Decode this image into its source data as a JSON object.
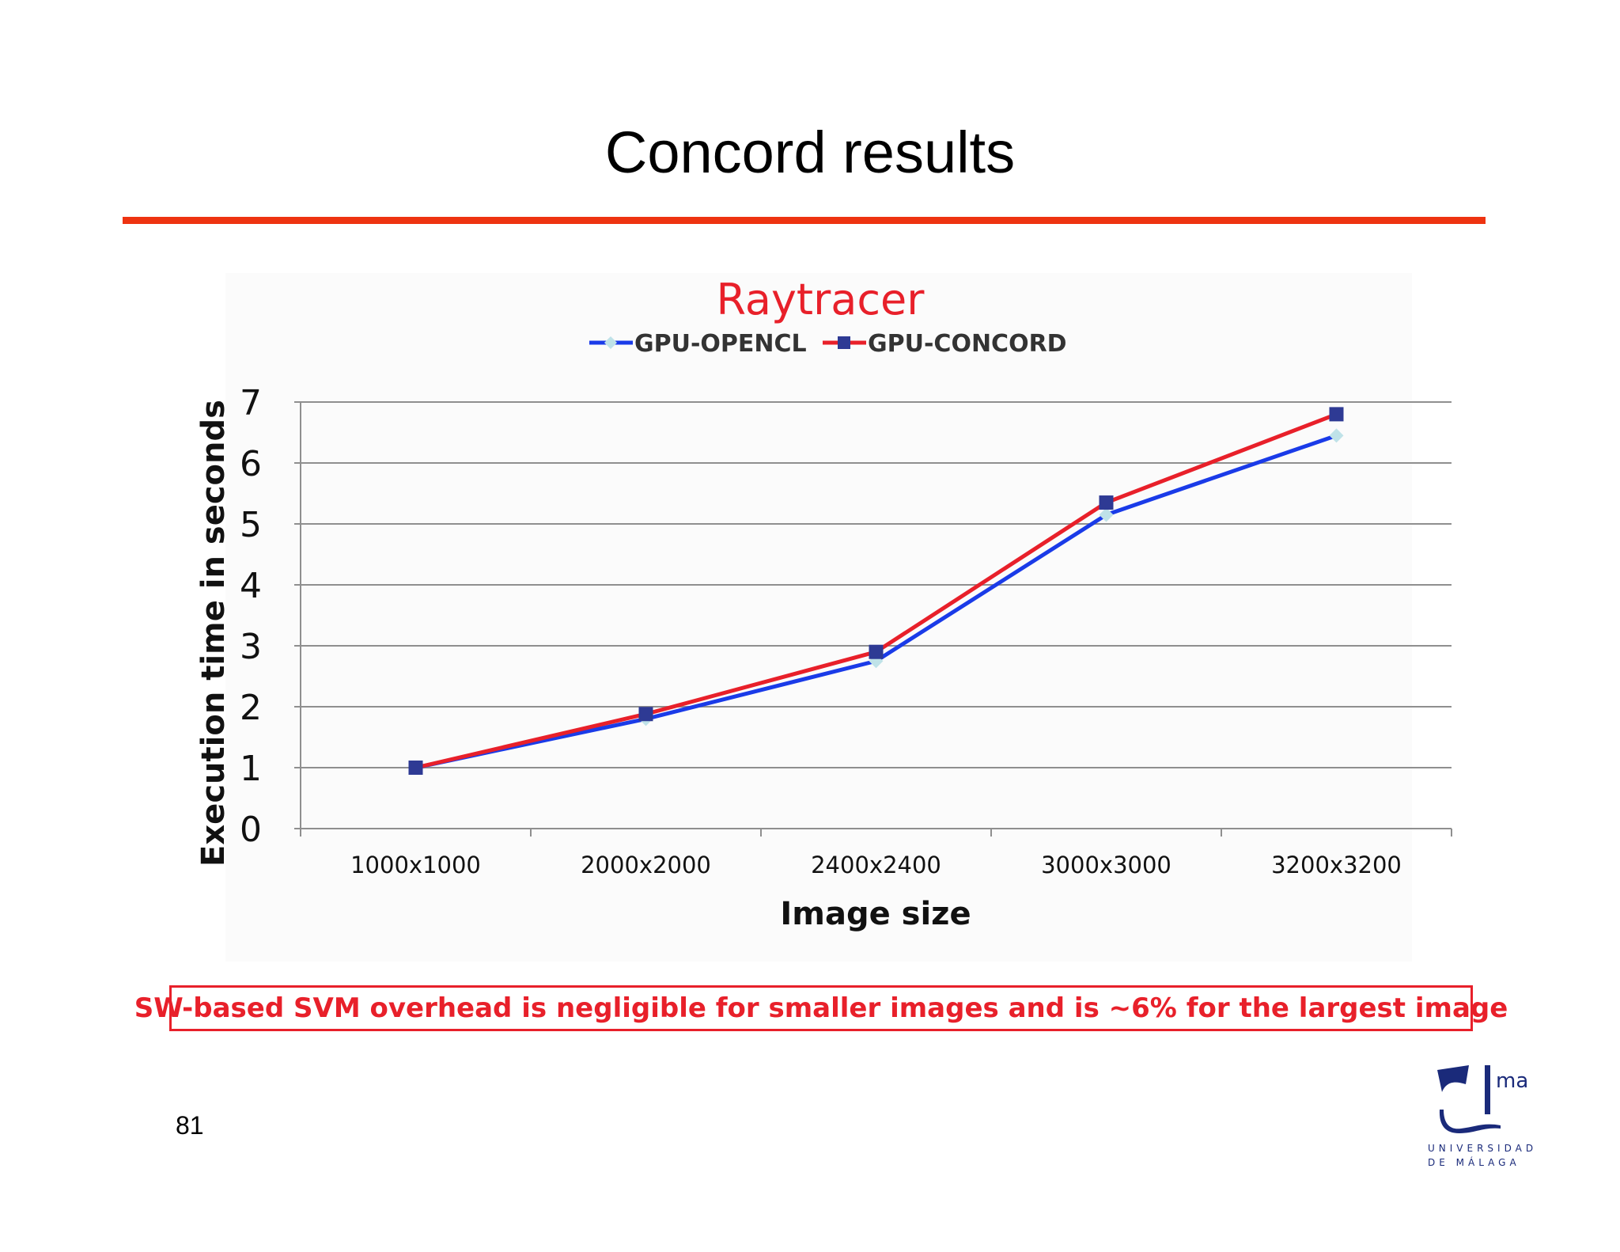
{
  "slide": {
    "title": "Concord results",
    "page_number": "81",
    "accent_color": "#ee3311",
    "note": "SW-based SVM overhead is negligible for smaller images and is ~6% for the largest image",
    "note_color": "#e8202a"
  },
  "logo": {
    "mark_text": "ma",
    "line1": "UNIVERSIDAD",
    "line2": "DE MÁLAGA",
    "color": "#1a2a7a"
  },
  "chart_data": {
    "type": "line",
    "title": "Raytracer",
    "title_color": "#e8202a",
    "xlabel": "Image size",
    "ylabel": "Execution time in seconds",
    "categories": [
      "1000x1000",
      "2000x2000",
      "2400x2400",
      "3000x3000",
      "3200x3200"
    ],
    "ylim": [
      0,
      7
    ],
    "yticks": [
      "0",
      "1",
      "2",
      "3",
      "4",
      "5",
      "6",
      "7"
    ],
    "grid": true,
    "legend_position": "top",
    "series": [
      {
        "name": "GPU-OPENCL",
        "values": [
          1.0,
          1.8,
          2.75,
          5.15,
          6.45
        ],
        "line_color": "#1a3be8",
        "marker": "diamond",
        "marker_color": "#bfe2e8"
      },
      {
        "name": "GPU-CONCORD",
        "values": [
          1.0,
          1.88,
          2.9,
          5.35,
          6.8
        ],
        "line_color": "#e8202a",
        "marker": "square",
        "marker_color": "#2e3a94"
      }
    ]
  }
}
